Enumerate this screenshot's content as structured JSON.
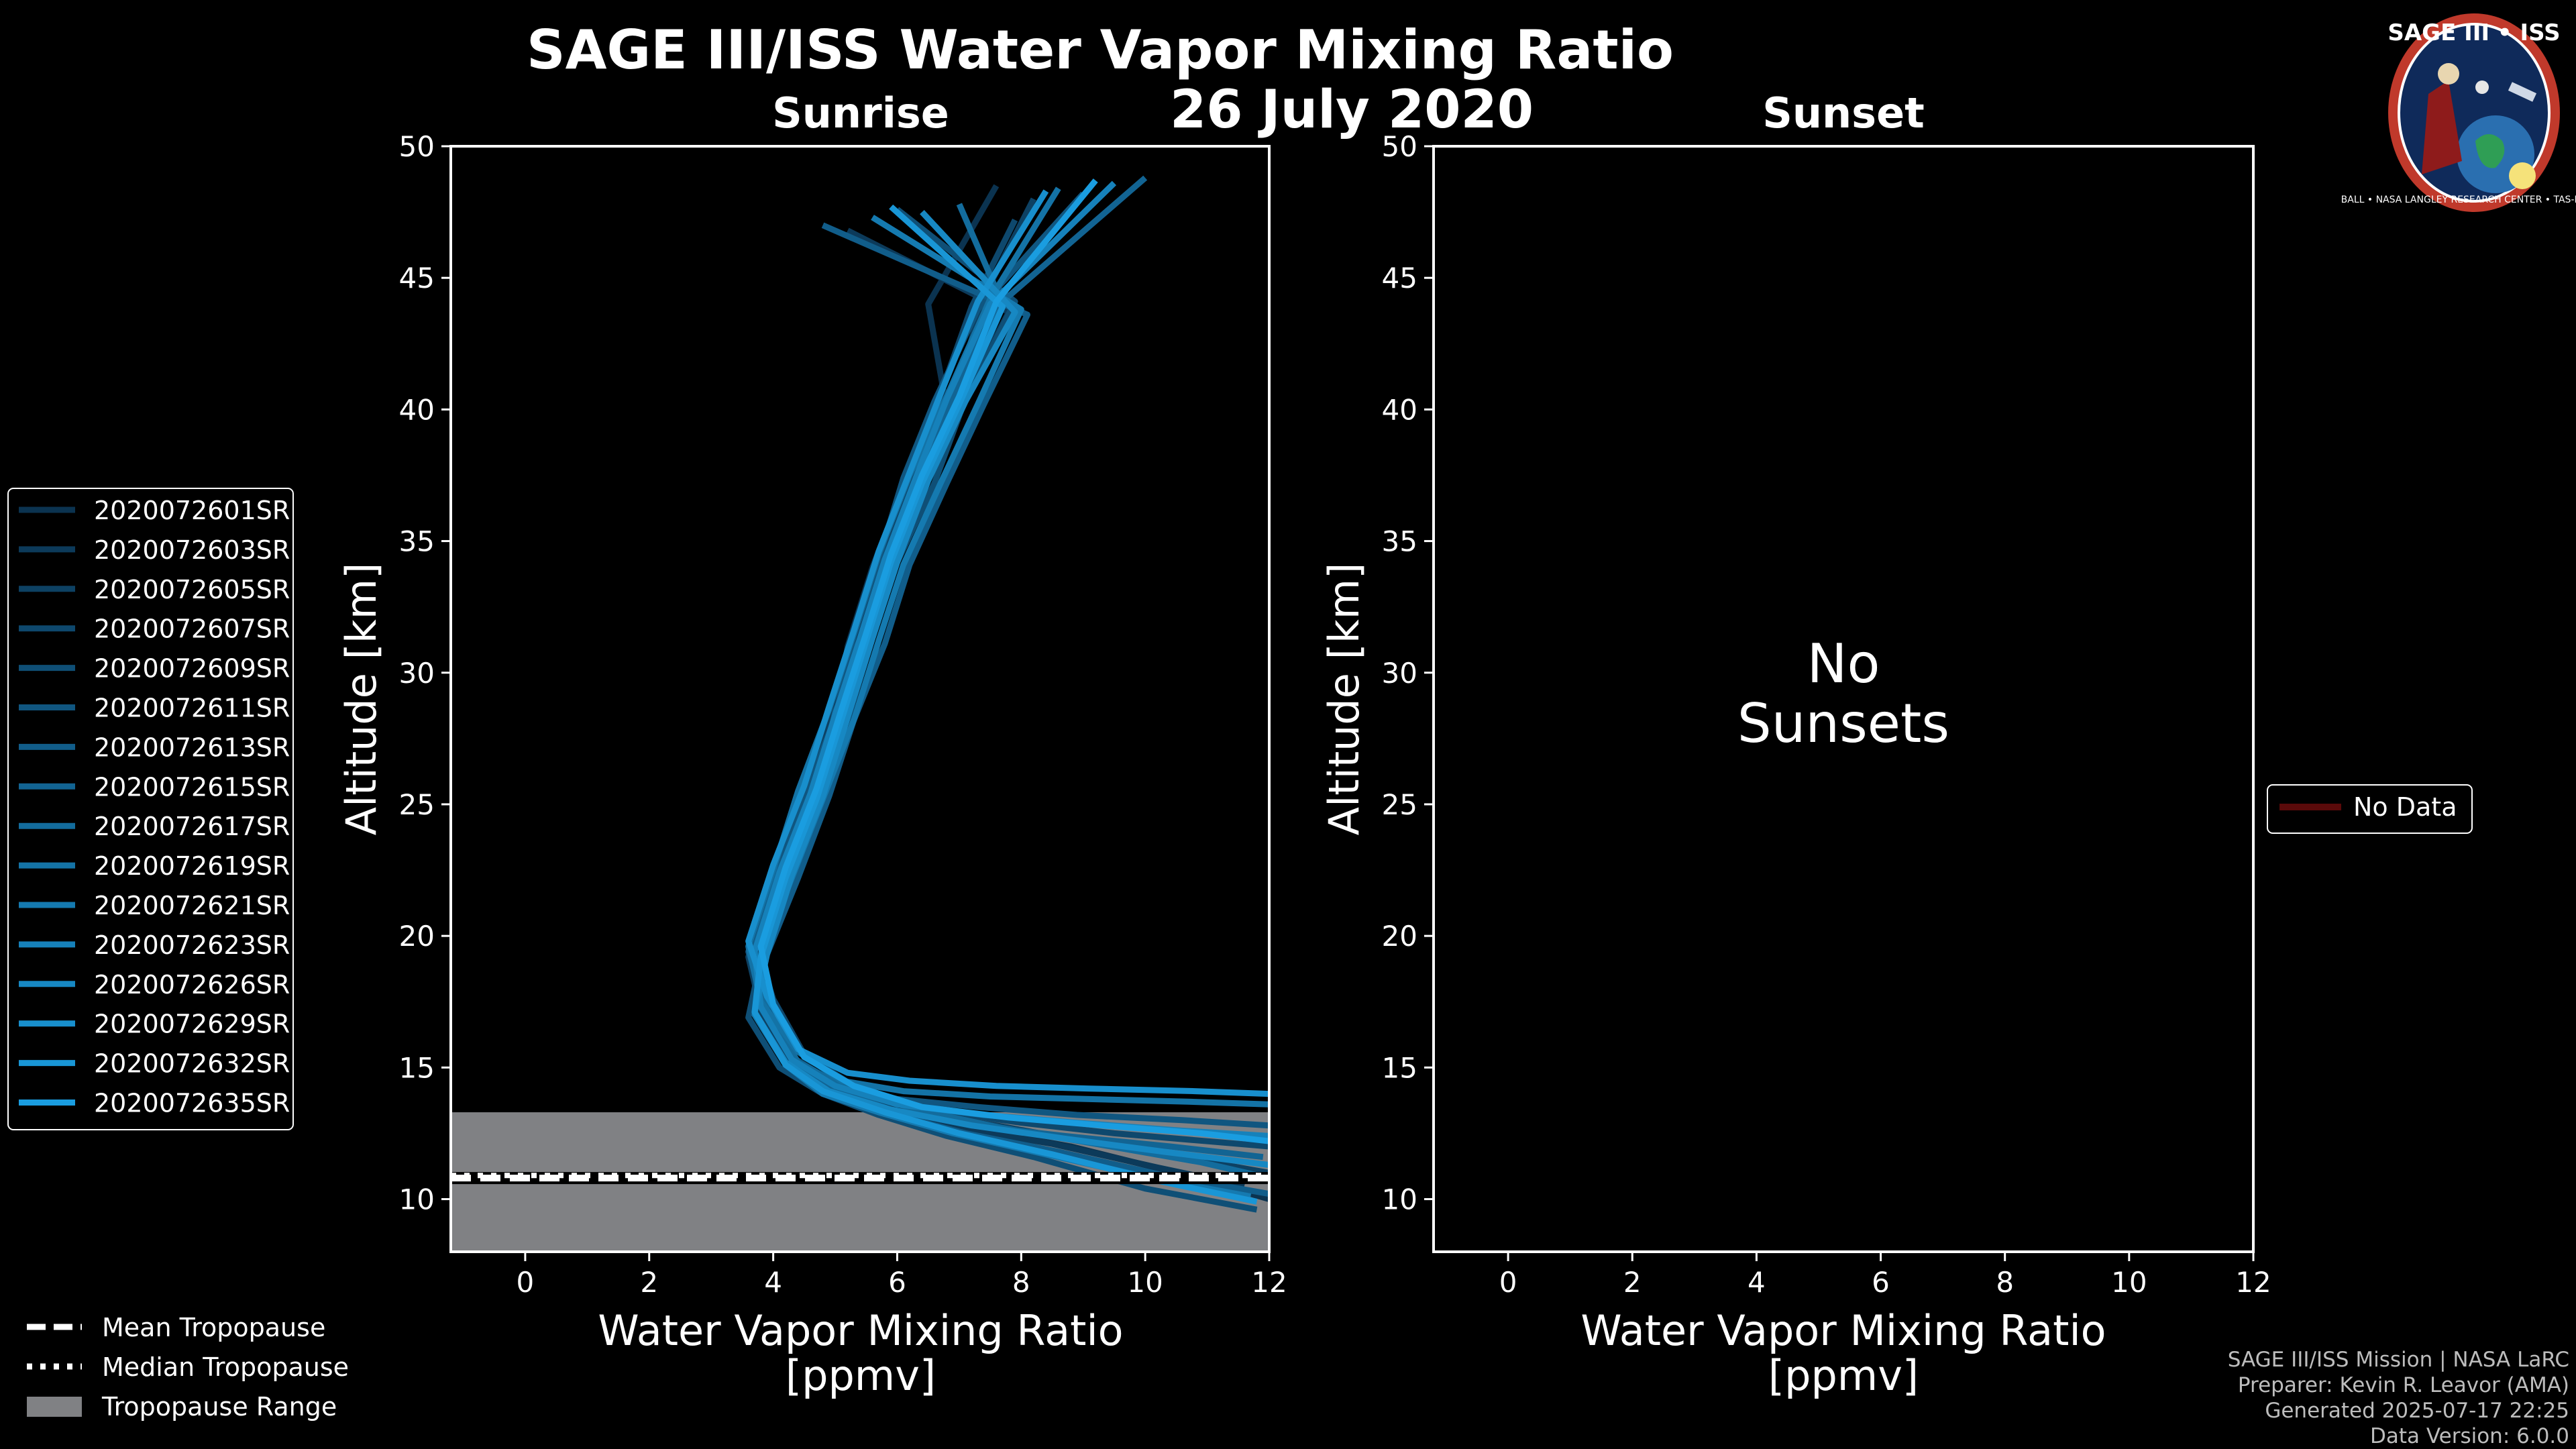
{
  "title": "SAGE III/ISS Water Vapor Mixing Ratio",
  "date": "26 July 2020",
  "panels": [
    {
      "title": "Sunrise",
      "xlabel_line1": "Water Vapor Mixing Ratio",
      "xlabel_line2": "[ppmv]",
      "ylabel": "Altitude [km]"
    },
    {
      "title": "Sunset",
      "xlabel_line1": "Water Vapor Mixing Ratio",
      "xlabel_line2": "[ppmv]",
      "ylabel": "Altitude [km]",
      "no_data_line1": "No",
      "no_data_line2": "Sunsets"
    }
  ],
  "legend_sunrise": [
    "2020072601SR",
    "2020072603SR",
    "2020072605SR",
    "2020072607SR",
    "2020072609SR",
    "2020072611SR",
    "2020072613SR",
    "2020072615SR",
    "2020072617SR",
    "2020072619SR",
    "2020072621SR",
    "2020072623SR",
    "2020072626SR",
    "2020072629SR",
    "2020072632SR",
    "2020072635SR"
  ],
  "legend_sunset": {
    "label": "No Data",
    "color": "#5a0a0a"
  },
  "legend_tropopause": {
    "mean": "Mean Tropopause",
    "median": "Median Tropopause",
    "range": "Tropopause Range"
  },
  "footer": {
    "line1": "SAGE III/ISS Mission | NASA LaRC",
    "line2": "Preparer: Kevin R. Leavor (AMA)",
    "line3": "Generated 2025-07-17 22:25",
    "line4": "Data Version: 6.0.0"
  },
  "logo": {
    "text": "SAGE III • ISS",
    "ring_text": "BALL • NASA LANGLEY RESEARCH CENTER • TAS-I • ESA"
  },
  "colors": {
    "profile_dark": "#0b3350",
    "profile_light": "#1a9de0",
    "tropopause_range": "#808184",
    "axis": "#ffffff"
  },
  "chart_data": {
    "type": "line",
    "xlim": [
      -1.2,
      12
    ],
    "ylim": [
      8,
      50
    ],
    "xticks": [
      0,
      2,
      4,
      6,
      8,
      10,
      12
    ],
    "yticks": [
      10,
      15,
      20,
      25,
      30,
      35,
      40,
      45,
      50
    ],
    "tropopause": {
      "mean_km": 10.8,
      "median_km": 10.9,
      "range_km": [
        8.0,
        13.3
      ]
    },
    "series": [
      {
        "name": "2020072601SR",
        "x": [
          12.0,
          10.5,
          8.8,
          7.4,
          6.0,
          5.0,
          4.4,
          3.9,
          3.8,
          4.1,
          4.6,
          5.0,
          5.2,
          5.6,
          6.1,
          6.8,
          6.5,
          7.6
        ],
        "y": [
          10.0,
          11.0,
          12.0,
          12.6,
          13.4,
          14.0,
          15.0,
          17.0,
          19.0,
          22.0,
          25.0,
          28.0,
          31.0,
          34.0,
          37.0,
          40.0,
          44.0,
          48.5
        ]
      },
      {
        "name": "2020072603SR",
        "x": [
          11.6,
          10.2,
          8.5,
          7.0,
          5.6,
          4.9,
          4.2,
          3.7,
          3.9,
          4.3,
          4.8,
          5.1,
          5.4,
          5.9,
          6.4,
          7.0,
          7.8,
          5.2
        ],
        "y": [
          10.5,
          11.2,
          12.1,
          12.7,
          13.5,
          14.2,
          15.3,
          17.4,
          19.5,
          22.3,
          25.4,
          28.4,
          31.2,
          34.1,
          37.3,
          40.1,
          43.7,
          46.8
        ]
      },
      {
        "name": "2020072605SR",
        "x": [
          12.0,
          10.8,
          9.0,
          7.6,
          6.2,
          5.1,
          4.3,
          3.8,
          3.6,
          4.0,
          4.5,
          4.9,
          5.3,
          5.7,
          6.2,
          6.9,
          7.4,
          8.2
        ],
        "y": [
          11.0,
          11.5,
          12.2,
          12.8,
          13.3,
          14.1,
          15.1,
          17.2,
          19.2,
          22.1,
          25.2,
          28.1,
          31.1,
          33.9,
          37.1,
          40.2,
          44.3,
          48.0
        ]
      },
      {
        "name": "2020072607SR",
        "x": [
          12.0,
          11.0,
          9.5,
          8.0,
          6.5,
          5.3,
          4.5,
          4.0,
          3.7,
          4.2,
          4.7,
          5.1,
          5.5,
          5.8,
          6.3,
          6.7,
          7.2,
          7.9
        ],
        "y": [
          12.0,
          12.2,
          12.5,
          12.9,
          13.4,
          14.3,
          15.5,
          17.6,
          19.8,
          22.6,
          25.6,
          28.7,
          31.5,
          34.4,
          37.5,
          40.6,
          43.9,
          47.2
        ]
      },
      {
        "name": "2020072609SR",
        "x": [
          11.8,
          10.0,
          8.2,
          6.8,
          5.7,
          4.8,
          4.1,
          3.6,
          3.8,
          4.2,
          4.6,
          5.2,
          5.6,
          6.0,
          6.6,
          7.1,
          7.9,
          6.0
        ],
        "y": [
          9.6,
          10.4,
          11.6,
          12.4,
          13.2,
          14.0,
          15.0,
          16.9,
          19.1,
          22.2,
          25.1,
          28.2,
          31.3,
          34.2,
          37.2,
          40.4,
          44.1,
          47.6
        ]
      },
      {
        "name": "2020072611SR",
        "x": [
          12.0,
          10.6,
          8.9,
          7.3,
          6.0,
          5.0,
          4.3,
          3.9,
          3.6,
          4.0,
          4.5,
          5.0,
          5.3,
          5.7,
          6.1,
          6.6,
          7.3,
          9.0
        ],
        "y": [
          12.8,
          13.0,
          13.2,
          13.5,
          13.8,
          14.4,
          15.4,
          17.3,
          19.4,
          22.4,
          25.3,
          28.3,
          31.4,
          34.3,
          37.4,
          40.3,
          43.8,
          48.2
        ]
      },
      {
        "name": "2020072613SR",
        "x": [
          12.0,
          10.3,
          8.6,
          7.1,
          5.8,
          4.9,
          4.2,
          3.7,
          3.9,
          4.4,
          4.9,
          5.3,
          5.8,
          6.2,
          6.8,
          7.4,
          8.1,
          4.8
        ],
        "y": [
          10.2,
          10.9,
          11.8,
          12.5,
          13.3,
          14.1,
          15.2,
          17.1,
          19.3,
          22.2,
          25.3,
          28.2,
          31.1,
          34.1,
          37.2,
          40.2,
          43.6,
          47.0
        ]
      },
      {
        "name": "2020072615SR",
        "x": [
          11.9,
          10.4,
          8.7,
          7.2,
          5.9,
          4.9,
          4.3,
          3.8,
          3.7,
          4.1,
          4.7,
          5.0,
          5.5,
          5.9,
          6.4,
          6.9,
          7.6,
          10.0
        ],
        "y": [
          11.6,
          12.0,
          12.4,
          12.8,
          13.4,
          14.2,
          15.3,
          17.3,
          19.5,
          22.5,
          25.5,
          28.5,
          31.4,
          34.4,
          37.3,
          40.5,
          43.9,
          48.8
        ]
      },
      {
        "name": "2020072617SR",
        "x": [
          12.0,
          10.9,
          9.2,
          7.7,
          6.3,
          5.2,
          4.4,
          3.9,
          3.8,
          4.2,
          4.8,
          5.2,
          5.4,
          5.8,
          6.3,
          7.0,
          7.7,
          7.0
        ],
        "y": [
          10.8,
          11.4,
          12.1,
          12.7,
          13.4,
          14.2,
          15.2,
          17.2,
          19.3,
          22.3,
          25.2,
          28.3,
          31.2,
          34.2,
          37.3,
          40.3,
          44.0,
          47.8
        ]
      },
      {
        "name": "2020072619SR",
        "x": [
          12.0,
          10.7,
          9.1,
          7.5,
          6.1,
          5.1,
          4.4,
          3.8,
          3.6,
          4.0,
          4.4,
          4.9,
          5.3,
          5.7,
          6.2,
          6.8,
          7.5,
          8.6
        ],
        "y": [
          13.6,
          13.7,
          13.8,
          13.9,
          14.1,
          14.5,
          15.6,
          17.5,
          19.6,
          22.5,
          25.5,
          28.6,
          31.5,
          34.5,
          37.5,
          40.5,
          44.2,
          48.4
        ]
      },
      {
        "name": "2020072621SR",
        "x": [
          11.7,
          10.1,
          8.4,
          6.9,
          5.7,
          4.8,
          4.2,
          3.7,
          3.8,
          4.3,
          4.8,
          5.3,
          5.7,
          6.1,
          6.7,
          7.3,
          8.0,
          5.6
        ],
        "y": [
          10.1,
          10.8,
          11.7,
          12.5,
          13.3,
          14.0,
          15.1,
          17.0,
          19.2,
          22.2,
          25.2,
          28.2,
          31.2,
          34.1,
          37.2,
          40.2,
          43.8,
          47.3
        ]
      },
      {
        "name": "2020072623SR",
        "x": [
          12.0,
          10.6,
          8.9,
          7.4,
          6.0,
          5.0,
          4.3,
          3.8,
          3.7,
          4.1,
          4.6,
          5.0,
          5.4,
          5.8,
          6.3,
          6.8,
          7.5,
          9.5
        ],
        "y": [
          12.4,
          12.6,
          12.9,
          13.2,
          13.6,
          14.3,
          15.3,
          17.3,
          19.4,
          22.4,
          25.4,
          28.4,
          31.3,
          34.3,
          37.4,
          40.4,
          44.0,
          48.6
        ]
      },
      {
        "name": "2020072626SR",
        "x": [
          12.0,
          10.3,
          8.7,
          7.2,
          5.9,
          4.9,
          4.2,
          3.7,
          3.9,
          4.3,
          4.8,
          5.2,
          5.6,
          6.0,
          6.5,
          7.1,
          7.9,
          6.4
        ],
        "y": [
          11.3,
          11.8,
          12.3,
          12.8,
          13.4,
          14.1,
          15.2,
          17.1,
          19.3,
          22.3,
          25.3,
          28.3,
          31.3,
          34.2,
          37.3,
          40.3,
          43.7,
          47.5
        ]
      },
      {
        "name": "2020072629SR",
        "x": [
          12.0,
          10.8,
          9.1,
          7.6,
          6.2,
          5.2,
          4.4,
          3.9,
          3.6,
          4.0,
          4.5,
          4.9,
          5.3,
          5.7,
          6.2,
          6.7,
          7.3,
          8.4
        ],
        "y": [
          14.0,
          14.1,
          14.2,
          14.3,
          14.5,
          14.8,
          15.7,
          17.7,
          19.8,
          22.7,
          25.7,
          28.7,
          31.6,
          34.6,
          37.6,
          40.6,
          44.1,
          48.3
        ]
      },
      {
        "name": "2020072632SR",
        "x": [
          11.8,
          10.2,
          8.5,
          7.0,
          5.8,
          4.8,
          4.2,
          3.7,
          3.8,
          4.2,
          4.7,
          5.1,
          5.5,
          5.9,
          6.4,
          7.0,
          7.7,
          5.9
        ],
        "y": [
          9.9,
          10.7,
          11.7,
          12.5,
          13.3,
          14.1,
          15.1,
          17.1,
          19.2,
          22.2,
          25.2,
          28.2,
          31.2,
          34.2,
          37.2,
          40.2,
          43.9,
          47.7
        ]
      },
      {
        "name": "2020072635SR",
        "x": [
          12.0,
          10.9,
          9.3,
          7.8,
          6.4,
          5.3,
          4.5,
          4.0,
          3.8,
          4.2,
          4.7,
          5.1,
          5.5,
          5.9,
          6.4,
          7.0,
          7.6,
          9.2
        ],
        "y": [
          12.2,
          12.5,
          12.8,
          13.1,
          13.5,
          14.3,
          15.4,
          17.4,
          19.6,
          22.6,
          25.6,
          28.6,
          31.5,
          34.5,
          37.5,
          40.5,
          44.1,
          48.7
        ]
      }
    ]
  }
}
